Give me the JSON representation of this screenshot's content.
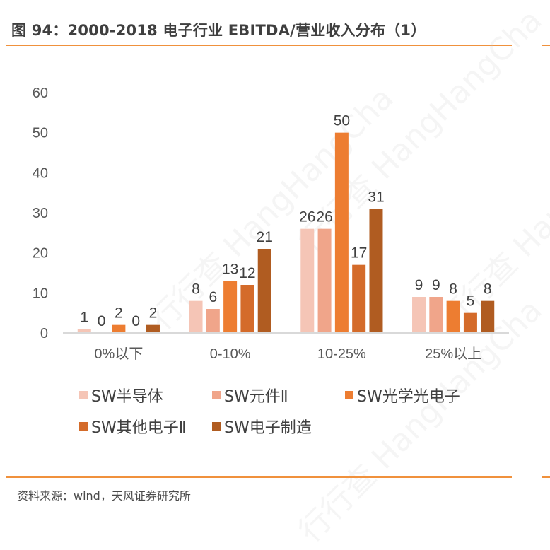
{
  "figure": {
    "title": "图 94：2000-2018  电子行业 EBITDA/营业收入分布（1）",
    "source": "资料来源：wind，天风证券研究所",
    "watermark": "行行查 HangHangCha"
  },
  "colors": {
    "rule": "#F0913C",
    "axis": "#D9D9D9"
  },
  "chart_data": {
    "type": "bar",
    "title": "2000-2018 电子行业 EBITDA/营业收入分布（1）",
    "xlabel": "",
    "ylabel": "",
    "ylim": [
      0,
      60
    ],
    "yticks": [
      0,
      10,
      20,
      30,
      40,
      50,
      60
    ],
    "grid": false,
    "legend_position": "bottom",
    "categories": [
      "0%以下",
      "0-10%",
      "10-25%",
      "25%以上"
    ],
    "series": [
      {
        "name": "SW半导体",
        "color": "#F5C5B6",
        "values": [
          1,
          8,
          26,
          9
        ]
      },
      {
        "name": "SW元件Ⅱ",
        "color": "#F0A58A",
        "values": [
          0,
          6,
          26,
          9
        ]
      },
      {
        "name": "SW光学光电子",
        "color": "#ED7D31",
        "values": [
          2,
          13,
          50,
          8
        ]
      },
      {
        "name": "SW其他电子Ⅱ",
        "color": "#D46B2A",
        "values": [
          0,
          12,
          17,
          5
        ]
      },
      {
        "name": "SW电子制造",
        "color": "#B05C21",
        "values": [
          2,
          21,
          31,
          8
        ]
      }
    ]
  }
}
